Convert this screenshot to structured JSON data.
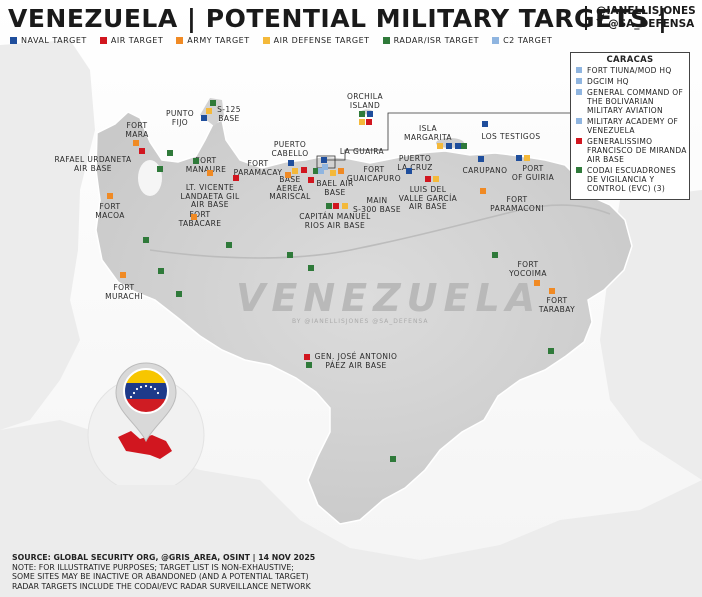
{
  "title": "VENEZUELA | POTENTIAL MILITARY TARGETS |",
  "handles": [
    "@IANELLISJONES",
    "𝕏 @SA_DEFENSA"
  ],
  "colors": {
    "naval": "#1f4e9c",
    "air": "#d1161f",
    "army": "#f08a24",
    "air_defense": "#f4b93a",
    "radar": "#2f7a3a",
    "c2": "#8fb5e0"
  },
  "legend": [
    {
      "label": "NAVAL TARGET",
      "color_key": "naval"
    },
    {
      "label": "AIR TARGET",
      "color_key": "air"
    },
    {
      "label": "ARMY TARGET",
      "color_key": "army"
    },
    {
      "label": "AIR DEFENSE TARGET",
      "color_key": "air_defense"
    },
    {
      "label": "RADAR/ISR TARGET",
      "color_key": "radar"
    },
    {
      "label": "C2 TARGET",
      "color_key": "c2"
    }
  ],
  "caracas": {
    "title": "CARACAS",
    "items": [
      {
        "label": "FORT TIUNA/MOD HQ",
        "color_key": "c2"
      },
      {
        "label": "DGCIM HQ",
        "color_key": "c2"
      },
      {
        "label": "GENERAL COMMAND OF THE BOLIVARIAN MILITARY AVIATION",
        "color_key": "c2"
      },
      {
        "label": "MILITARY ACADEMY OF VENEZUELA",
        "color_key": "c2"
      },
      {
        "label": "GENERALISSIMO FRANCISCO DE MIRANDA AIR BASE",
        "color_key": "air"
      },
      {
        "label": "CODAI ESCUADRONES DE VIGILANCIA Y CONTROL (EVC) (3)",
        "color_key": "radar"
      }
    ]
  },
  "places": [
    {
      "label": "FORT\nMARA"
    },
    {
      "label": "RAFAEL URDANETA\nAIR BASE"
    },
    {
      "label": "PUNTO\nFIJO"
    },
    {
      "label": "S-125\nBASE"
    },
    {
      "label": "ORCHILA\nISLAND"
    },
    {
      "label": "LOS TESTIGOS"
    },
    {
      "label": "ISLA\nMARGARITA"
    },
    {
      "label": "PUERTO\nCABELLO"
    },
    {
      "label": "LA GUAIRA"
    },
    {
      "label": "CARUPANO"
    },
    {
      "label": "PUERTO\nLA CRUZ"
    },
    {
      "label": "PORT\nOF GUIRIA"
    },
    {
      "label": "FORT\nMANAURE"
    },
    {
      "label": "FORT\nPARAMACAY"
    },
    {
      "label": "LT. VICENTE\nLANDAETA GIL\nAIR BASE"
    },
    {
      "label": "BASE\nAEREA\nMARISCAL"
    },
    {
      "label": "BAEL AIR\nBASE"
    },
    {
      "label": "FORT\nGUAICAPURO"
    },
    {
      "label": "FORT\nMACOA"
    },
    {
      "label": "FORT\nTABACARE"
    },
    {
      "label": "MAIN\nS-300 BASE"
    },
    {
      "label": "CAPITÁN MANUEL\nRIOS AIR BASE"
    },
    {
      "label": "LUIS DEL\nVALLE GARCÍA\nAIR BASE"
    },
    {
      "label": "FORT\nPARAMACONI"
    },
    {
      "label": "FORT\nYOCOIMA"
    },
    {
      "label": "FORT\nTARABAY"
    },
    {
      "label": "FORT\nMURACHI"
    },
    {
      "label": "GEN. JOSÉ ANTONIO\nPÁEZ AIR BASE"
    }
  ],
  "watermark": "VENEZUELA",
  "watermark_sub": "BY @IANELLISJONES @SA_DEFENSA",
  "footer": {
    "source": "SOURCE: GLOBAL SECURITY ORG, @GRIS_AREA, OSINT | 14 NOV 2025",
    "notes": [
      "NOTE: FOR ILLUSTRATIVE PURPOSES; TARGET LIST IS NON-EXHAUSTIVE;",
      "SOME SITES MAY BE INACTIVE OR ABANDONED (AND A POTENTIAL TARGET)",
      "RADAR TARGETS INCLUDE THE CODAI/EVC RADAR SURVEILLANCE NETWORK"
    ]
  }
}
